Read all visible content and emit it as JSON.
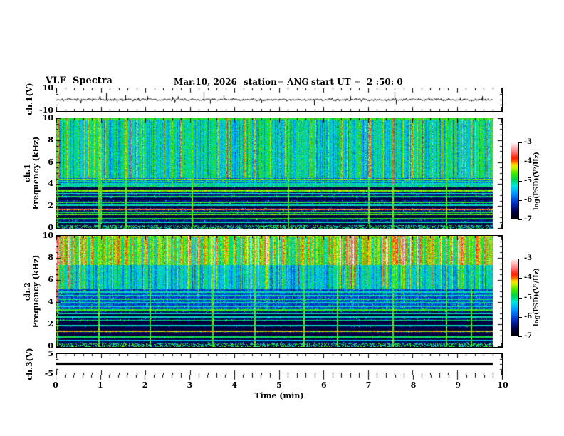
{
  "title": {
    "app": "VLF Spectra",
    "date": "Mar.10, 2026",
    "station": "station= ANG",
    "start_ut": "start UT =  2 :50: 0"
  },
  "panels": {
    "ch1_wave": {
      "ylabel": "ch.1(V)",
      "ytick_labels": [
        "10",
        "-10"
      ]
    },
    "spec1": {
      "ylabel_channel": "ch.1",
      "ylabel_axis": "Frequency (kHz)",
      "ytick_labels": [
        "10",
        "8",
        "6",
        "4",
        "2",
        "0"
      ]
    },
    "spec2": {
      "ylabel_channel": "ch.2",
      "ylabel_axis": "Frequency (kHz)",
      "ytick_labels": [
        "10",
        "8",
        "6",
        "4",
        "2",
        "0"
      ]
    },
    "ch3_wave": {
      "ylabel": "ch.3(V)",
      "ytick_labels": [
        "5",
        "-5"
      ]
    },
    "time_axis": {
      "label": "Time (min)",
      "tick_labels": [
        "0",
        "1",
        "2",
        "3",
        "4",
        "5",
        "6",
        "7",
        "8",
        "9",
        "10"
      ]
    }
  },
  "colorbars": [
    {
      "label": "log(PSD)(V²/Hz)",
      "tick_labels": [
        "-3",
        "-4",
        "-5",
        "-6",
        "-7"
      ],
      "range": [
        -3,
        -7
      ]
    },
    {
      "label": "log(PSD)(V²/Hz)",
      "tick_labels": [
        "-3",
        "-4",
        "-5",
        "-6",
        "-7"
      ],
      "range": [
        -3,
        -7
      ]
    }
  ],
  "palette": [
    {
      "v": 0.0,
      "c": "#000000"
    },
    {
      "v": 0.1,
      "c": "#000046"
    },
    {
      "v": 0.22,
      "c": "#0032c8"
    },
    {
      "v": 0.34,
      "c": "#0096ff"
    },
    {
      "v": 0.44,
      "c": "#00e6dc"
    },
    {
      "v": 0.52,
      "c": "#00d24b"
    },
    {
      "v": 0.6,
      "c": "#46e600"
    },
    {
      "v": 0.67,
      "c": "#c8f000"
    },
    {
      "v": 0.71,
      "c": "#ffdc00"
    },
    {
      "v": 0.75,
      "c": "#ff6400"
    },
    {
      "v": 0.8,
      "c": "#ff1e00"
    },
    {
      "v": 0.86,
      "c": "#ff6464"
    },
    {
      "v": 0.93,
      "c": "#ffb4b4"
    },
    {
      "v": 1.0,
      "c": "#ffffff"
    }
  ],
  "chart_data": [
    {
      "type": "line",
      "name": "ch1_waveform",
      "xlabel": "Time (min)",
      "ylabel": "ch.1(V)",
      "x_range": [
        0,
        9.8
      ],
      "y_range": [
        -10,
        10
      ],
      "seed": 7,
      "baseline": 0,
      "noise_amplitude": 1.1,
      "spikes": [
        {
          "t": 1.12,
          "v": 6
        },
        {
          "t": 1.35,
          "v": -3
        },
        {
          "t": 1.55,
          "v": 4
        },
        {
          "t": 2.05,
          "v": 3
        },
        {
          "t": 2.6,
          "v": 2.5
        },
        {
          "t": 3.3,
          "v": 7
        },
        {
          "t": 3.45,
          "v": -3.5
        },
        {
          "t": 3.75,
          "v": 4
        },
        {
          "t": 4.6,
          "v": -2.5
        },
        {
          "t": 5.78,
          "v": -5
        },
        {
          "t": 6.6,
          "v": 3
        },
        {
          "t": 7.58,
          "v": 7
        },
        {
          "t": 7.62,
          "v": -4
        },
        {
          "t": 8.35,
          "v": 2.5
        },
        {
          "t": 9.05,
          "v": 2
        },
        {
          "t": 9.55,
          "v": 3
        }
      ]
    },
    {
      "type": "heatmap",
      "name": "ch1_spectrogram",
      "xlabel": "Time (min)",
      "ylabel": "ch.1 Frequency (kHz)",
      "x_range": [
        0,
        9.8
      ],
      "y_range": [
        0,
        10
      ],
      "value_range": [
        -7,
        -3
      ],
      "value_unit": "log(PSD)(V²/Hz)",
      "seed": 11,
      "streak_probability": 0.1,
      "red_streak_probability": 0.012,
      "red_min_f": 4.6,
      "bands": [
        {
          "f": [
            4.6,
            10.1
          ],
          "base": 0.5,
          "col_influence": 1.0
        },
        {
          "f": [
            3.6,
            4.6
          ],
          "base": 0.3,
          "col_influence": 0.5,
          "sparkle": 0.04
        },
        {
          "f": [
            0.3,
            3.6
          ],
          "base": 0.15,
          "col_influence": 0.3,
          "sparkle": 0.04
        },
        {
          "f": [
            0,
            0.3
          ],
          "base": 0.12,
          "col_influence": 0.3,
          "speckle": true
        }
      ],
      "h_lines": [
        {
          "f": 9.92,
          "i": 0.55
        },
        {
          "f": 4.45,
          "i": 0.6,
          "w": 0.08
        },
        {
          "f": 4.25,
          "i": 0.48
        },
        {
          "f": 4.05,
          "i": 0.45
        },
        {
          "f": 3.85,
          "i": 0.5
        },
        {
          "f": 3.45,
          "i": 0.62,
          "w": 0.08
        },
        {
          "f": 3.15,
          "i": 0.45
        },
        {
          "f": 2.9,
          "i": 0.52
        },
        {
          "f": 2.4,
          "i": 0.55
        },
        {
          "f": 2.15,
          "i": 0.45
        },
        {
          "f": 1.75,
          "i": 0.78,
          "w": 0.05
        },
        {
          "f": 1.5,
          "i": 0.55
        },
        {
          "f": 1.3,
          "i": 0.6,
          "w": 0.08
        },
        {
          "f": 0.9,
          "i": 0.55
        },
        {
          "f": 0.6,
          "i": 0.45
        }
      ],
      "dark_bands": [
        [
          1.85,
          2.1
        ],
        [
          0.95,
          1.2
        ],
        [
          2.55,
          2.8
        ],
        [
          0.3,
          0.55
        ],
        [
          3.5,
          3.75
        ]
      ],
      "events": [
        {
          "t": 0.03
        },
        {
          "t": 0.95
        },
        {
          "t": 1.0
        },
        {
          "t": 1.55
        },
        {
          "t": 3.05
        },
        {
          "t": 5.2
        },
        {
          "t": 7.0
        },
        {
          "t": 7.55,
          "red": true
        },
        {
          "t": 8.75
        }
      ]
    },
    {
      "type": "heatmap",
      "name": "ch2_spectrogram",
      "xlabel": "Time (min)",
      "ylabel": "ch.2 Frequency (kHz)",
      "x_range": [
        0,
        9.8
      ],
      "y_range": [
        0,
        10
      ],
      "value_range": [
        -7,
        -3
      ],
      "value_unit": "log(PSD)(V²/Hz)",
      "seed": 23,
      "streak_probability": 0.12,
      "red_streak_probability": 0.02,
      "red_min_f": 5.5,
      "bands": [
        {
          "f": [
            7.4,
            10.1
          ],
          "base": 0.66,
          "col_influence": 1.0
        },
        {
          "f": [
            5.2,
            7.4
          ],
          "base": 0.46,
          "col_influence": 1.0
        },
        {
          "f": [
            3.2,
            5.2
          ],
          "base": 0.25,
          "col_influence": 0.45,
          "sparkle": 0.04
        },
        {
          "f": [
            0.3,
            3.2
          ],
          "base": 0.13,
          "col_influence": 0.3,
          "sparkle": 0.04
        },
        {
          "f": [
            0,
            0.3
          ],
          "base": 0.1,
          "col_influence": 0.3,
          "speckle": true
        }
      ],
      "h_lines": [
        {
          "f": 9.95,
          "i": 0.6
        },
        {
          "f": 4.95,
          "i": 0.45
        },
        {
          "f": 4.6,
          "i": 0.45
        },
        {
          "f": 4.3,
          "i": 0.5
        },
        {
          "f": 3.95,
          "i": 0.45
        },
        {
          "f": 3.65,
          "i": 0.45
        },
        {
          "f": 3.3,
          "i": 0.55,
          "w": 0.08
        },
        {
          "f": 3.0,
          "i": 0.45
        },
        {
          "f": 2.7,
          "i": 0.45
        },
        {
          "f": 2.4,
          "i": 0.5
        },
        {
          "f": 1.9,
          "i": 0.45
        },
        {
          "f": 1.4,
          "i": 0.68,
          "w": 0.08
        },
        {
          "f": 0.9,
          "i": 0.52
        },
        {
          "f": 0.6,
          "i": 0.4
        }
      ],
      "dark_bands": [
        [
          2.0,
          2.3
        ],
        [
          1.5,
          1.8
        ],
        [
          1.0,
          1.3
        ],
        [
          0.45,
          0.8
        ],
        [
          2.75,
          2.95
        ]
      ],
      "events": [
        {
          "t": 0.03,
          "red": true
        },
        {
          "t": 0.95
        },
        {
          "t": 2.1
        },
        {
          "t": 3.5
        },
        {
          "t": 4.45
        },
        {
          "t": 5.55
        },
        {
          "t": 6.3
        },
        {
          "t": 7.55
        },
        {
          "t": 8.75
        },
        {
          "t": 9.3
        }
      ]
    },
    {
      "type": "line",
      "name": "ch3_waveform",
      "xlabel": "Time (min)",
      "ylabel": "ch.3(V)",
      "x_range": [
        0,
        9.8
      ],
      "y_range": [
        -5,
        5
      ],
      "seed": 3,
      "baseline": 0.2,
      "noise_amplitude": 0,
      "thickness": 4,
      "spikes": []
    }
  ]
}
